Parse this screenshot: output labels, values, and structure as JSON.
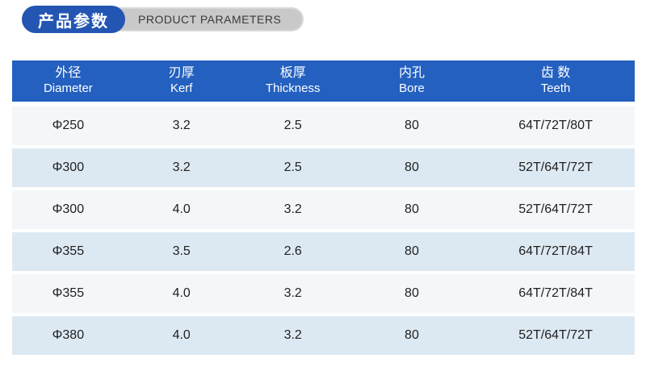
{
  "title_badge": {
    "zh": "产品参数",
    "en": "PRODUCT PARAMETERS",
    "blue_color": "#2355b2",
    "gray_color": "#c9c9c9"
  },
  "table": {
    "header_bg": "#2360bf",
    "row_light_color": "#f3f7fa",
    "row_blue_color": "#dde9f2",
    "columns": [
      {
        "zh": "外径",
        "en": "Diameter"
      },
      {
        "zh": "刃厚",
        "en": "Kerf"
      },
      {
        "zh": "板厚",
        "en": "Thickness"
      },
      {
        "zh": "内孔",
        "en": "Bore"
      },
      {
        "zh": "齿 数",
        "en": "Teeth"
      }
    ],
    "rows": [
      {
        "diameter": "Φ250",
        "kerf": "3.2",
        "thickness": "2.5",
        "bore": "80",
        "teeth": "64T/72T/80T"
      },
      {
        "diameter": "Φ300",
        "kerf": "3.2",
        "thickness": "2.5",
        "bore": "80",
        "teeth": "52T/64T/72T"
      },
      {
        "diameter": "Φ300",
        "kerf": "4.0",
        "thickness": "3.2",
        "bore": "80",
        "teeth": "52T/64T/72T"
      },
      {
        "diameter": "Φ355",
        "kerf": "3.5",
        "thickness": "2.6",
        "bore": "80",
        "teeth": "64T/72T/84T"
      },
      {
        "diameter": "Φ355",
        "kerf": "4.0",
        "thickness": "3.2",
        "bore": "80",
        "teeth": "64T/72T/84T"
      },
      {
        "diameter": "Φ380",
        "kerf": "4.0",
        "thickness": "3.2",
        "bore": "80",
        "teeth": "52T/64T/72T"
      }
    ]
  }
}
